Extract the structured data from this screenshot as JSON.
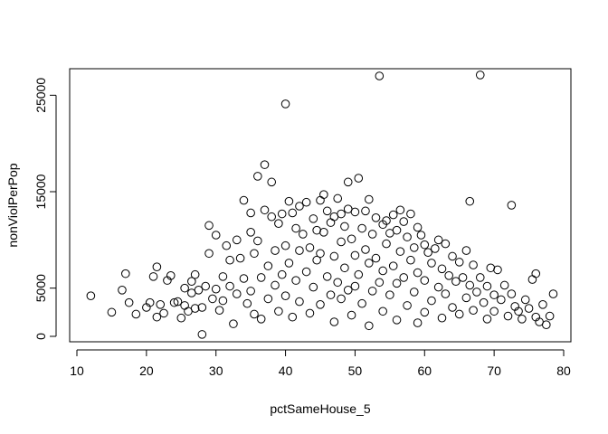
{
  "chart_data": {
    "type": "scatter",
    "title": "",
    "xlabel": "pctSameHouse_5",
    "ylabel": "nonViolPerPop",
    "xlim": [
      10,
      80
    ],
    "ylim": [
      0,
      27000
    ],
    "x_ticks": [
      10,
      20,
      30,
      40,
      50,
      60,
      70,
      80
    ],
    "x_tick_labels": [
      "10",
      "20",
      "30",
      "40",
      "50",
      "60",
      "70",
      "80"
    ],
    "y_ticks": [
      0,
      5000,
      15000,
      25000
    ],
    "y_tick_labels": [
      "0",
      "5000",
      "15000",
      "25000"
    ],
    "grid": false,
    "legend": "none",
    "marker": "open-circle",
    "series": [
      {
        "points": [
          [
            12,
            4200
          ],
          [
            15,
            2500
          ],
          [
            16.5,
            4800
          ],
          [
            17,
            6500
          ],
          [
            17.5,
            3500
          ],
          [
            18.5,
            2300
          ],
          [
            20,
            3000
          ],
          [
            20.5,
            3500
          ],
          [
            21,
            6200
          ],
          [
            21.5,
            7200
          ],
          [
            21.5,
            2000
          ],
          [
            22,
            3300
          ],
          [
            22.5,
            2400
          ],
          [
            23,
            5800
          ],
          [
            23.5,
            6300
          ],
          [
            24,
            3500
          ],
          [
            24.5,
            3600
          ],
          [
            25,
            1900
          ],
          [
            25.5,
            3200
          ],
          [
            25.5,
            5000
          ],
          [
            26,
            2600
          ],
          [
            26.5,
            4500
          ],
          [
            26.5,
            5700
          ],
          [
            27,
            6400
          ],
          [
            27,
            2900
          ],
          [
            27.5,
            4800
          ],
          [
            28,
            200
          ],
          [
            28,
            3000
          ],
          [
            28.5,
            5200
          ],
          [
            29,
            8600
          ],
          [
            29,
            11500
          ],
          [
            29.5,
            3900
          ],
          [
            30,
            10500
          ],
          [
            30,
            4900
          ],
          [
            30.5,
            2700
          ],
          [
            31,
            6200
          ],
          [
            31,
            3700
          ],
          [
            31.5,
            9400
          ],
          [
            32,
            7900
          ],
          [
            32,
            5200
          ],
          [
            32.5,
            1300
          ],
          [
            33,
            10000
          ],
          [
            33,
            4400
          ],
          [
            33.5,
            8100
          ],
          [
            34,
            14100
          ],
          [
            34,
            6000
          ],
          [
            34.5,
            3400
          ],
          [
            35,
            12800
          ],
          [
            35,
            10800
          ],
          [
            35,
            4700
          ],
          [
            35.5,
            8600
          ],
          [
            35.5,
            2300
          ],
          [
            36,
            16600
          ],
          [
            36,
            9900
          ],
          [
            36.5,
            6100
          ],
          [
            36.5,
            1800
          ],
          [
            37,
            17800
          ],
          [
            37,
            13100
          ],
          [
            37.5,
            7300
          ],
          [
            37.5,
            3900
          ],
          [
            38,
            16000
          ],
          [
            38,
            12400
          ],
          [
            38.5,
            8900
          ],
          [
            38.5,
            5300
          ],
          [
            39,
            11700
          ],
          [
            39,
            2600
          ],
          [
            39.5,
            12700
          ],
          [
            39.5,
            6400
          ],
          [
            40,
            24100
          ],
          [
            40,
            9400
          ],
          [
            40,
            4200
          ],
          [
            40.5,
            14000
          ],
          [
            40.5,
            7600
          ],
          [
            41,
            12800
          ],
          [
            41,
            2000
          ],
          [
            41.5,
            11200
          ],
          [
            41.5,
            5800
          ],
          [
            42,
            13500
          ],
          [
            42,
            8900
          ],
          [
            42,
            3600
          ],
          [
            42.5,
            10600
          ],
          [
            43,
            13900
          ],
          [
            43,
            6700
          ],
          [
            43.5,
            9200
          ],
          [
            43.5,
            2400
          ],
          [
            44,
            12200
          ],
          [
            44,
            5100
          ],
          [
            44.5,
            11000
          ],
          [
            44.5,
            7900
          ],
          [
            45,
            14100
          ],
          [
            45,
            8600
          ],
          [
            45,
            3300
          ],
          [
            45.5,
            14700
          ],
          [
            45.5,
            10800
          ],
          [
            46,
            13000
          ],
          [
            46,
            6200
          ],
          [
            46.5,
            11800
          ],
          [
            46.5,
            4300
          ],
          [
            47,
            12400
          ],
          [
            47,
            8300
          ],
          [
            47,
            1500
          ],
          [
            47.5,
            14300
          ],
          [
            47.5,
            5600
          ],
          [
            48,
            12700
          ],
          [
            48,
            9800
          ],
          [
            48,
            3900
          ],
          [
            48.5,
            11400
          ],
          [
            48.5,
            7100
          ],
          [
            49,
            16000
          ],
          [
            49,
            13200
          ],
          [
            49,
            4800
          ],
          [
            49.5,
            10100
          ],
          [
            49.5,
            2200
          ],
          [
            50,
            12900
          ],
          [
            50,
            8400
          ],
          [
            50,
            5200
          ],
          [
            50.5,
            16400
          ],
          [
            50.5,
            6400
          ],
          [
            51,
            11200
          ],
          [
            51,
            3400
          ],
          [
            51.5,
            13000
          ],
          [
            51.5,
            9000
          ],
          [
            52,
            14200
          ],
          [
            52,
            7600
          ],
          [
            52,
            1100
          ],
          [
            52.5,
            10600
          ],
          [
            52.5,
            4700
          ],
          [
            53,
            12300
          ],
          [
            53,
            8100
          ],
          [
            53.5,
            27000
          ],
          [
            53.5,
            5600
          ],
          [
            54,
            11600
          ],
          [
            54,
            6800
          ],
          [
            54,
            2600
          ],
          [
            54.5,
            12000
          ],
          [
            54.5,
            9600
          ],
          [
            55,
            10700
          ],
          [
            55,
            4300
          ],
          [
            55.5,
            12600
          ],
          [
            55.5,
            7300
          ],
          [
            56,
            11000
          ],
          [
            56,
            5500
          ],
          [
            56,
            1700
          ],
          [
            56.5,
            13100
          ],
          [
            56.5,
            8800
          ],
          [
            57,
            11900
          ],
          [
            57,
            6100
          ],
          [
            57.5,
            10300
          ],
          [
            57.5,
            3200
          ],
          [
            58,
            12700
          ],
          [
            58,
            7900
          ],
          [
            58.5,
            9200
          ],
          [
            58.5,
            4600
          ],
          [
            59,
            11300
          ],
          [
            59,
            6600
          ],
          [
            59,
            1400
          ],
          [
            59.5,
            10500
          ],
          [
            60,
            9500
          ],
          [
            60,
            5800
          ],
          [
            60,
            2500
          ],
          [
            60.5,
            8700
          ],
          [
            61,
            7600
          ],
          [
            61,
            3700
          ],
          [
            61.5,
            9100
          ],
          [
            62,
            10000
          ],
          [
            62,
            5100
          ],
          [
            62.5,
            7000
          ],
          [
            62.5,
            1900
          ],
          [
            63,
            9600
          ],
          [
            63,
            4400
          ],
          [
            63.5,
            6300
          ],
          [
            64,
            8300
          ],
          [
            64,
            3000
          ],
          [
            64.5,
            5700
          ],
          [
            65,
            7700
          ],
          [
            65,
            2300
          ],
          [
            65.5,
            6100
          ],
          [
            66,
            8900
          ],
          [
            66,
            4000
          ],
          [
            66.5,
            14000
          ],
          [
            66.5,
            5300
          ],
          [
            67,
            7400
          ],
          [
            67,
            2700
          ],
          [
            67.5,
            4600
          ],
          [
            68,
            27100
          ],
          [
            68,
            6100
          ],
          [
            68.5,
            3500
          ],
          [
            69,
            5200
          ],
          [
            69,
            1800
          ],
          [
            69.5,
            7100
          ],
          [
            70,
            4300
          ],
          [
            70,
            2600
          ],
          [
            70.5,
            6900
          ],
          [
            71,
            3800
          ],
          [
            71.5,
            5300
          ],
          [
            72,
            2100
          ],
          [
            72.5,
            13600
          ],
          [
            72.5,
            4400
          ],
          [
            73,
            3100
          ],
          [
            73.5,
            2600
          ],
          [
            74,
            1800
          ],
          [
            74.5,
            3800
          ],
          [
            75,
            2900
          ],
          [
            75.5,
            5900
          ],
          [
            76,
            6500
          ],
          [
            76,
            2000
          ],
          [
            76.5,
            1500
          ],
          [
            77,
            3300
          ],
          [
            77.5,
            1200
          ],
          [
            78,
            2100
          ],
          [
            78.5,
            4400
          ]
        ]
      }
    ]
  }
}
